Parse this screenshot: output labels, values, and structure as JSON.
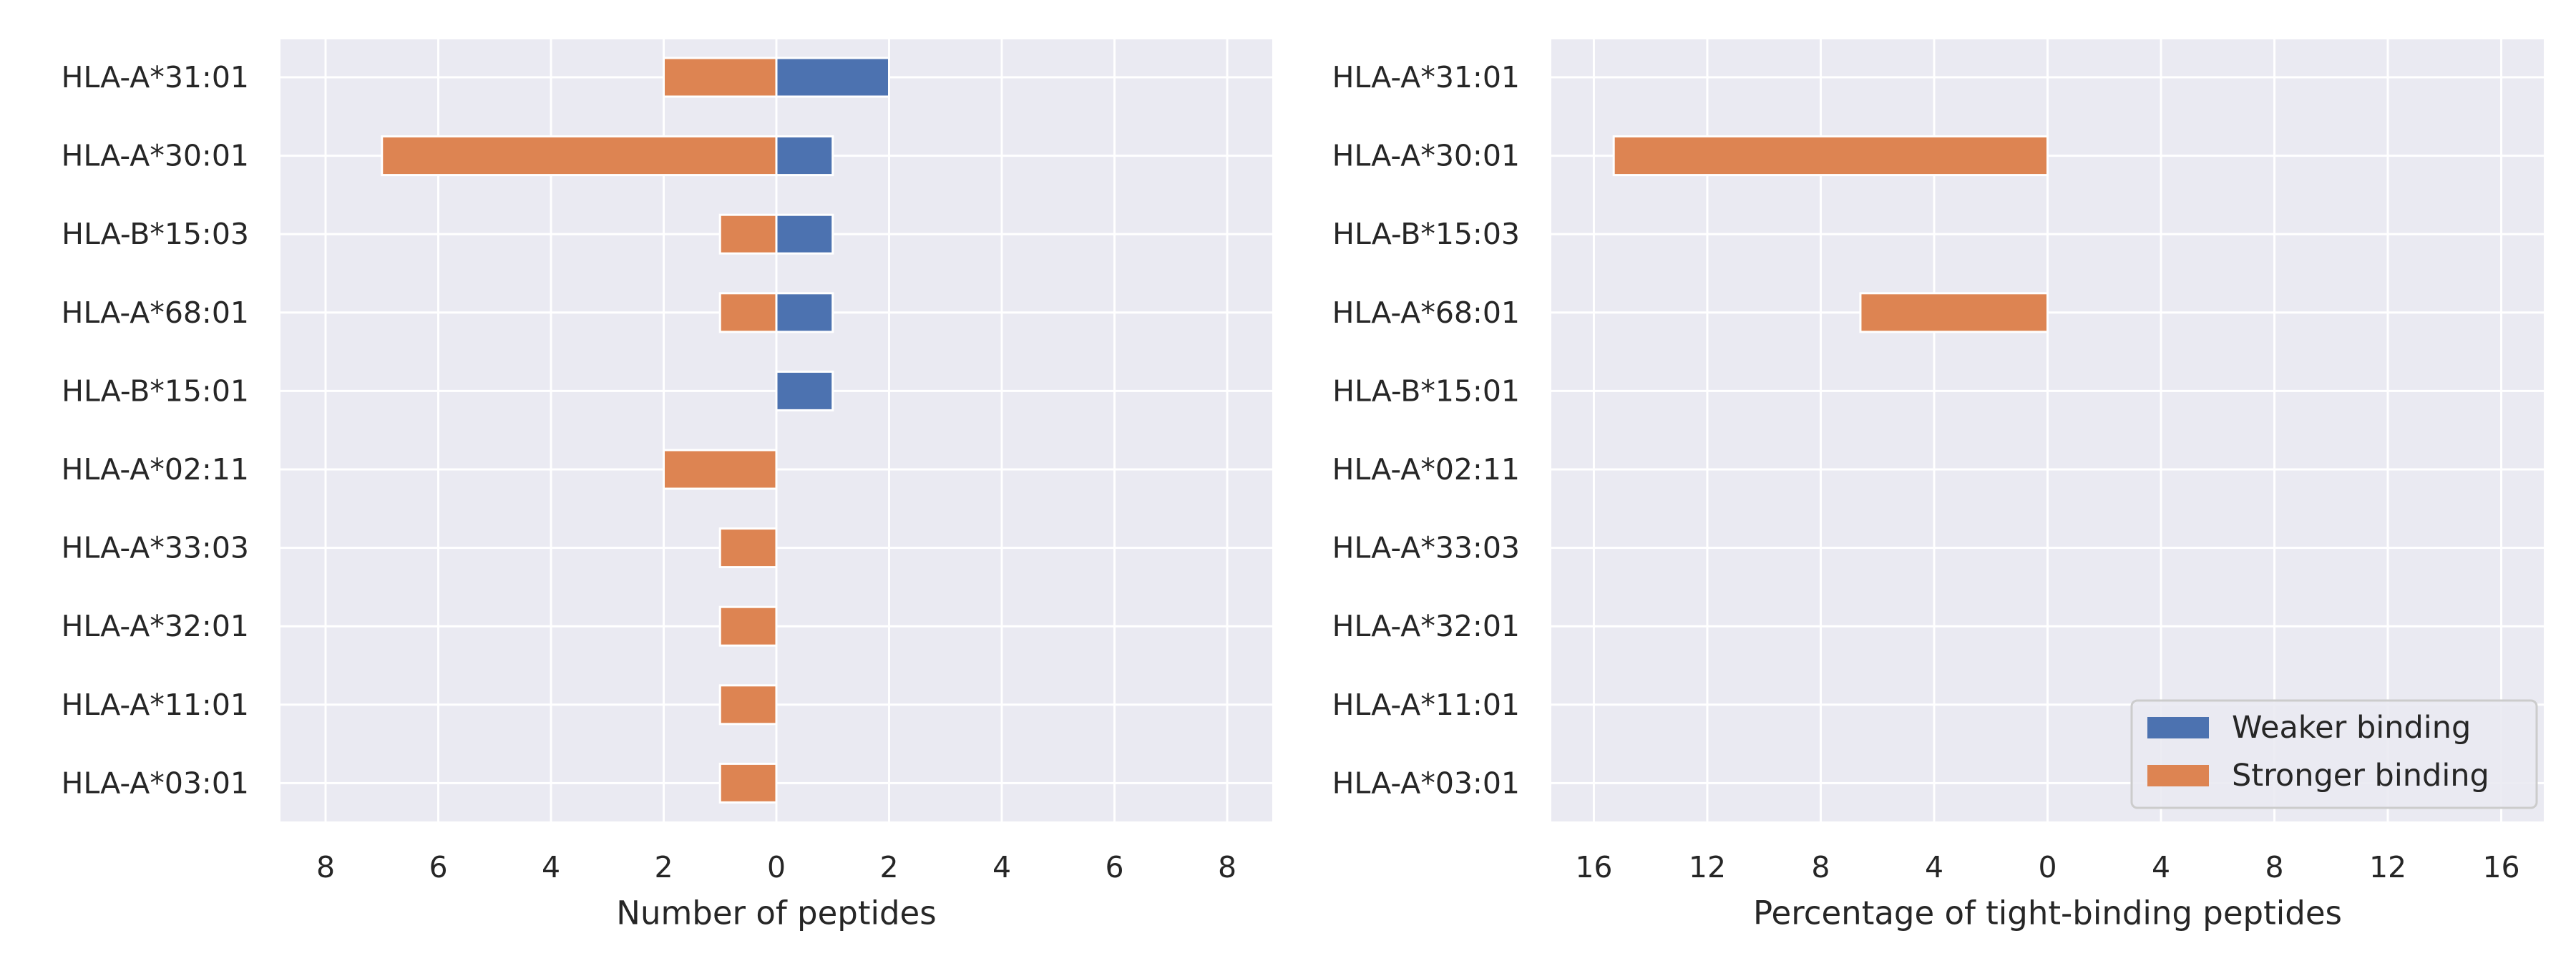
{
  "chart_data": [
    {
      "type": "bar",
      "orientation": "horizontal-diverging",
      "title": "",
      "xlabel": "Number of peptides",
      "ylabel": "",
      "categories": [
        "HLA-A*31:01",
        "HLA-A*30:01",
        "HLA-B*15:03",
        "HLA-A*68:01",
        "HLA-B*15:01",
        "HLA-A*02:11",
        "HLA-A*33:03",
        "HLA-A*32:01",
        "HLA-A*11:01",
        "HLA-A*03:01"
      ],
      "xlim": [
        -8.8,
        8.8
      ],
      "xticks": [
        -8,
        -6,
        -4,
        -2,
        0,
        2,
        4,
        6,
        8
      ],
      "xtick_labels": [
        "8",
        "6",
        "4",
        "2",
        "0",
        "2",
        "4",
        "6",
        "8"
      ],
      "grid": true,
      "series": [
        {
          "name": "Weaker binding",
          "side": "right",
          "color": "#4c72b0",
          "values": [
            2,
            1,
            1,
            1,
            1,
            0,
            0,
            0,
            0,
            0
          ]
        },
        {
          "name": "Stronger binding",
          "side": "left",
          "color": "#dd8452",
          "values": [
            2,
            7,
            1,
            1,
            0,
            2,
            1,
            1,
            1,
            1
          ]
        }
      ]
    },
    {
      "type": "bar",
      "orientation": "horizontal-diverging",
      "title": "",
      "xlabel": "Percentage of tight-binding peptides",
      "ylabel": "",
      "categories": [
        "HLA-A*31:01",
        "HLA-A*30:01",
        "HLA-B*15:03",
        "HLA-A*68:01",
        "HLA-B*15:01",
        "HLA-A*02:11",
        "HLA-A*33:03",
        "HLA-A*32:01",
        "HLA-A*11:01",
        "HLA-A*03:01"
      ],
      "xlim": [
        -17.5,
        17.5
      ],
      "xticks": [
        -16,
        -12,
        -8,
        -4,
        0,
        4,
        8,
        12,
        16
      ],
      "xtick_labels": [
        "16",
        "12",
        "8",
        "4",
        "0",
        "4",
        "8",
        "12",
        "16"
      ],
      "grid": true,
      "legend": {
        "position": "bottom-right",
        "entries": [
          {
            "label": "Weaker binding",
            "color": "#4c72b0"
          },
          {
            "label": "Stronger binding",
            "color": "#dd8452"
          }
        ]
      },
      "series": [
        {
          "name": "Weaker binding",
          "side": "right",
          "color": "#4c72b0",
          "values": [
            0,
            0,
            0,
            0,
            0,
            0,
            0,
            0,
            0,
            0
          ]
        },
        {
          "name": "Stronger binding",
          "side": "left",
          "color": "#dd8452",
          "values": [
            0,
            15.3,
            0,
            6.6,
            0,
            0,
            0,
            0,
            0,
            0
          ]
        }
      ]
    }
  ],
  "style": {
    "plot_background": "#eaeaf2",
    "grid_color": "#ffffff"
  }
}
